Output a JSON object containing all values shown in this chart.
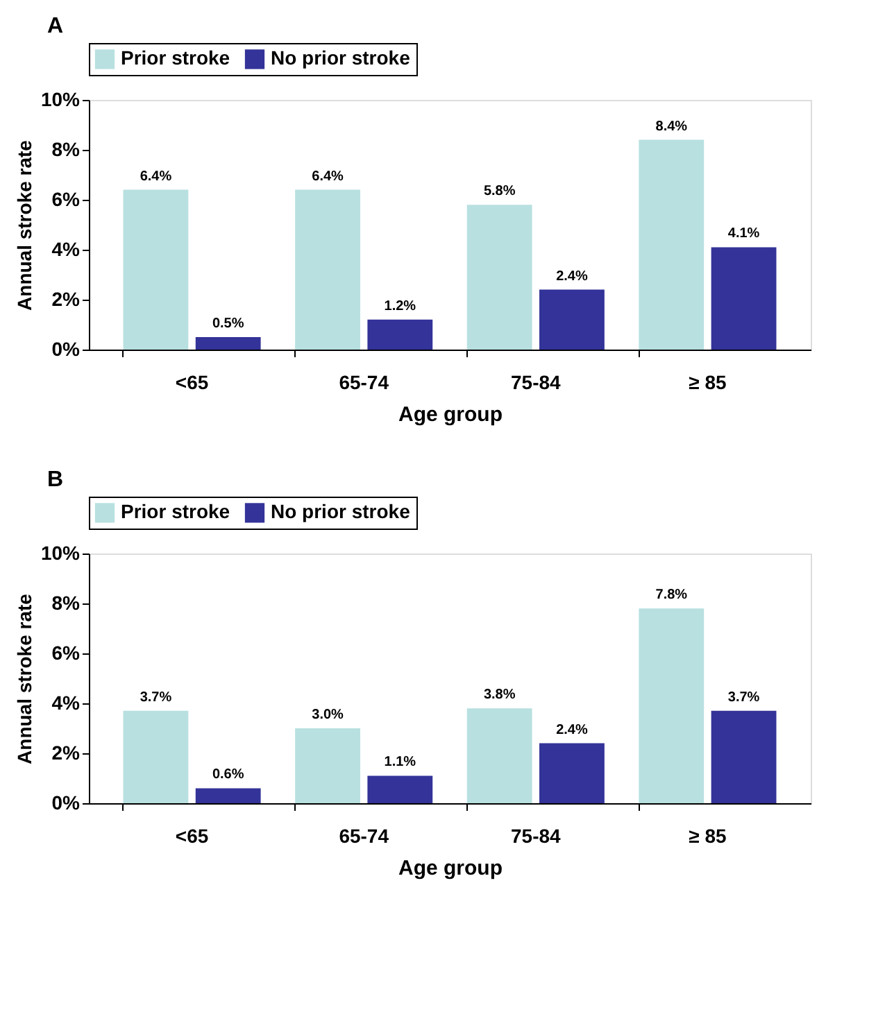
{
  "chart_data": [
    {
      "type": "bar",
      "title": "A",
      "xlabel": "Age group",
      "ylabel": "Annual stroke rate",
      "categories": [
        "<65",
        "65-74",
        "75-84",
        "≥ 85"
      ],
      "series": [
        {
          "name": "Prior stroke",
          "color": "#b8e0e0",
          "values": [
            6.4,
            6.4,
            5.8,
            8.4
          ],
          "value_labels": [
            "6.4%",
            "6.4%",
            "5.8%",
            "8.4%"
          ]
        },
        {
          "name": "No prior stroke",
          "color": "#333399",
          "values": [
            0.5,
            1.2,
            2.4,
            4.1
          ],
          "value_labels": [
            "0.5%",
            "1.2%",
            "2.4%",
            "4.1%"
          ]
        }
      ],
      "ylim": [
        0,
        10
      ],
      "yticks": [
        {
          "value": 0,
          "label": "0%"
        },
        {
          "value": 2,
          "label": "2%"
        },
        {
          "value": 4,
          "label": "4%"
        },
        {
          "value": 6,
          "label": "6%"
        },
        {
          "value": 8,
          "label": "8%"
        },
        {
          "value": 10,
          "label": "10%"
        }
      ],
      "grid": false,
      "legend": "top"
    },
    {
      "type": "bar",
      "title": "B",
      "xlabel": "Age group",
      "ylabel": "Annual stroke rate",
      "categories": [
        "<65",
        "65-74",
        "75-84",
        "≥ 85"
      ],
      "series": [
        {
          "name": "Prior stroke",
          "color": "#b8e0e0",
          "values": [
            3.7,
            3.0,
            3.8,
            7.8
          ],
          "value_labels": [
            "3.7%",
            "3.0%",
            "3.8%",
            "7.8%"
          ]
        },
        {
          "name": "No prior stroke",
          "color": "#333399",
          "values": [
            0.6,
            1.1,
            2.4,
            3.7
          ],
          "value_labels": [
            "0.6%",
            "1.1%",
            "2.4%",
            "3.7%"
          ]
        }
      ],
      "ylim": [
        0,
        10
      ],
      "yticks": [
        {
          "value": 0,
          "label": "0%"
        },
        {
          "value": 2,
          "label": "2%"
        },
        {
          "value": 4,
          "label": "4%"
        },
        {
          "value": 6,
          "label": "6%"
        },
        {
          "value": 8,
          "label": "8%"
        },
        {
          "value": 10,
          "label": "10%"
        }
      ],
      "grid": false,
      "legend": "top"
    }
  ]
}
